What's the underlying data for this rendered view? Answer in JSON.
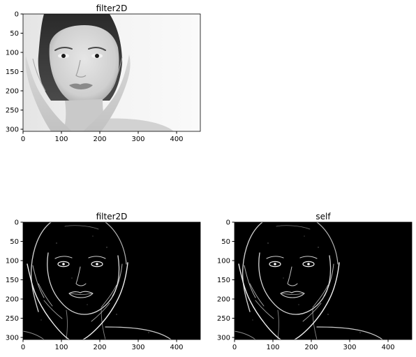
{
  "figure": {
    "panels": [
      {
        "id": "original",
        "title": "filter2D",
        "image_content": "grayscale photo of a woman's face framed by her hands",
        "image_tone": "bright",
        "x_ticks": [
          "0",
          "100",
          "200",
          "300",
          "400"
        ],
        "y_ticks": [
          "0",
          "50",
          "100",
          "150",
          "200",
          "250",
          "300"
        ]
      },
      {
        "id": "filter2d-edges",
        "title": "filter2D",
        "image_content": "edge-detection result: white outlines of the face and hands on black",
        "image_tone": "dark",
        "x_ticks": [
          "0",
          "100",
          "200",
          "300",
          "400"
        ],
        "y_ticks": [
          "0",
          "50",
          "100",
          "150",
          "200",
          "250",
          "300"
        ]
      },
      {
        "id": "self-edges",
        "title": "self",
        "image_content": "edge-detection result: white outlines of the face and hands on black",
        "image_tone": "dark",
        "x_ticks": [
          "0",
          "100",
          "200",
          "300",
          "400"
        ],
        "y_ticks": [
          "0",
          "50",
          "100",
          "150",
          "200",
          "250",
          "300"
        ]
      }
    ]
  }
}
